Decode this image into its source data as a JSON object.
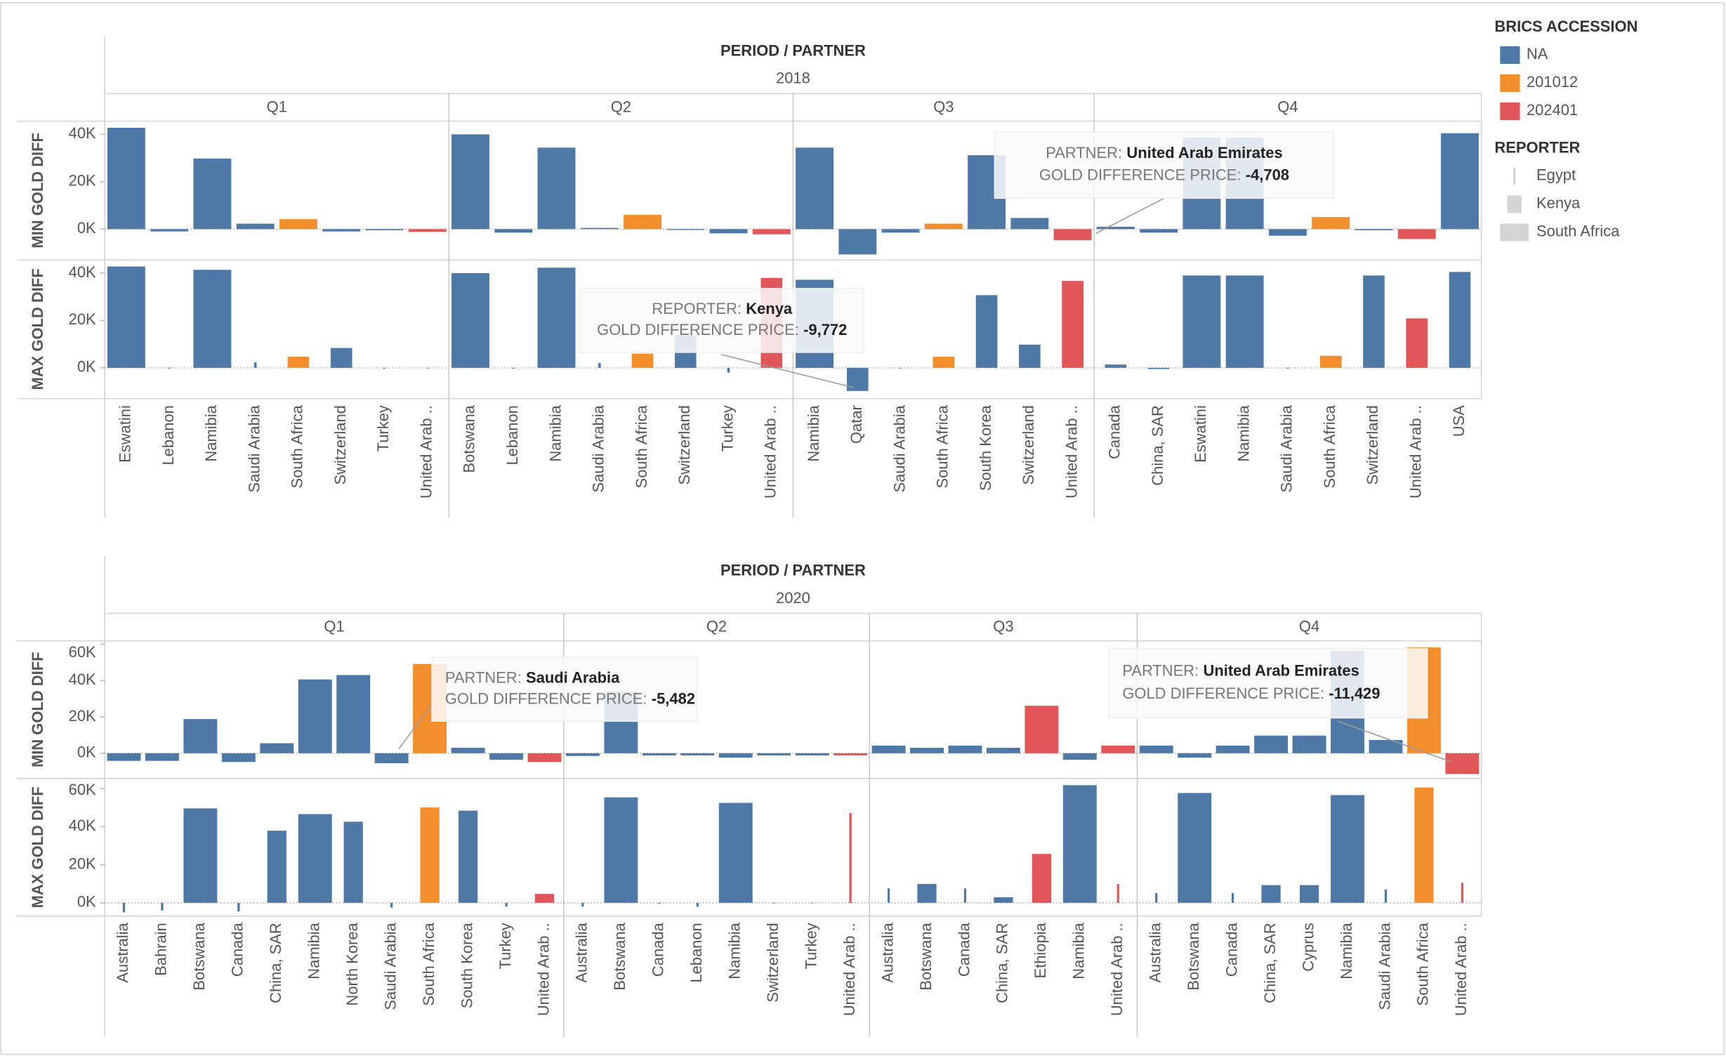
{
  "legend": {
    "accession_title": "BRICS ACCESSION",
    "accession": [
      {
        "name": "NA",
        "color": "#4e79a7"
      },
      {
        "name": "201012",
        "color": "#f28e2b"
      },
      {
        "name": "202401",
        "color": "#e15759"
      }
    ],
    "reporter_title": "REPORTER",
    "reporters": [
      "Egypt",
      "Kenya",
      "South Africa"
    ]
  },
  "chart_data": [
    {
      "type": "bar",
      "title": "PERIOD / PARTNER",
      "year": "2018",
      "panes": [
        {
          "label": "MIN GOLD DIFF",
          "ylim": [
            -13000,
            45600
          ],
          "yticks": [
            {
              "value": 0,
              "label": "0K"
            },
            {
              "value": 20000,
              "label": "20K"
            },
            {
              "value": 40000,
              "label": "40K"
            }
          ]
        },
        {
          "label": "MAX GOLD DIFF",
          "ylim": [
            -13000,
            45600
          ],
          "yticks": [
            {
              "value": 0,
              "label": "0K"
            },
            {
              "value": 20000,
              "label": "20K"
            },
            {
              "value": 40000,
              "label": "40K"
            }
          ]
        }
      ],
      "quarters": [
        {
          "name": "Q1",
          "categories": [
            "Eswatini",
            "Lebanon",
            "Namibia",
            "Saudi Arabia",
            "South Africa",
            "Switzerland",
            "Turkey",
            "United Arab .."
          ],
          "accession": [
            "NA",
            "NA",
            "NA",
            "NA",
            "201012",
            "NA",
            "NA",
            "202401"
          ],
          "series": [
            {
              "values": [
                42800,
                -1000,
                29800,
                2300,
                4200,
                -1000,
                -500,
                -1200
              ],
              "reporter": [
                "South Africa",
                "South Africa",
                "South Africa",
                "South Africa",
                "South Africa",
                "South Africa",
                "South Africa",
                "South Africa"
              ]
            },
            {
              "values": [
                42800,
                -300,
                41400,
                2300,
                4700,
                8400,
                -300,
                -200
              ],
              "reporter": [
                "South Africa",
                "Egypt",
                "South Africa",
                "Egypt",
                "Kenya",
                "Kenya",
                "Egypt",
                "Egypt"
              ]
            }
          ]
        },
        {
          "name": "Q2",
          "categories": [
            "Botswana",
            "Lebanon",
            "Namibia",
            "Saudi Arabia",
            "South Africa",
            "Switzerland",
            "Turkey",
            "United Arab .."
          ],
          "accession": [
            "NA",
            "NA",
            "NA",
            "NA",
            "201012",
            "NA",
            "NA",
            "202401"
          ],
          "series": [
            {
              "values": [
                40000,
                -1500,
                34400,
                500,
                6000,
                -400,
                -1800,
                -2200
              ],
              "reporter": [
                "South Africa",
                "South Africa",
                "South Africa",
                "South Africa",
                "South Africa",
                "South Africa",
                "South Africa",
                "South Africa"
              ]
            },
            {
              "values": [
                40000,
                -300,
                42300,
                2000,
                6000,
                14000,
                -2000,
                38000
              ],
              "reporter": [
                "South Africa",
                "Egypt",
                "South Africa",
                "Egypt",
                "Kenya",
                "Kenya",
                "Egypt",
                "Kenya"
              ]
            }
          ]
        },
        {
          "name": "Q3",
          "categories": [
            "Namibia",
            "Qatar",
            "Saudi Arabia",
            "South Africa",
            "South Korea",
            "Switzerland",
            "United Arab .."
          ],
          "accession": [
            "NA",
            "NA",
            "NA",
            "201012",
            "NA",
            "NA",
            "202401"
          ],
          "series": [
            {
              "values": [
                34400,
                -10700,
                -1500,
                2300,
                31200,
                4700,
                -4708
              ],
              "reporter": [
                "South Africa",
                "South Africa",
                "South Africa",
                "South Africa",
                "South Africa",
                "South Africa",
                "South Africa"
              ]
            },
            {
              "values": [
                37200,
                -9772,
                -300,
                4700,
                30700,
                9800,
                36700
              ],
              "reporter": [
                "South Africa",
                "Kenya",
                "Egypt",
                "Kenya",
                "Kenya",
                "Kenya",
                "Kenya"
              ]
            }
          ]
        },
        {
          "name": "Q4",
          "categories": [
            "Canada",
            "China, SAR",
            "Eswatini",
            "Namibia",
            "Saudi Arabia",
            "South Africa",
            "Switzerland",
            "United Arab ..",
            "USA"
          ],
          "accession": [
            "NA",
            "NA",
            "NA",
            "NA",
            "NA",
            "201012",
            "NA",
            "202401",
            "NA"
          ],
          "series": [
            {
              "values": [
                1000,
                -1500,
                38600,
                38600,
                -2800,
                5100,
                -500,
                -4200,
                40500
              ],
              "reporter": [
                "South Africa",
                "South Africa",
                "South Africa",
                "South Africa",
                "South Africa",
                "South Africa",
                "South Africa",
                "South Africa",
                "South Africa"
              ]
            },
            {
              "values": [
                1400,
                -500,
                39000,
                39000,
                -300,
                5100,
                39000,
                20900,
                40500
              ],
              "reporter": [
                "Kenya",
                "Kenya",
                "South Africa",
                "South Africa",
                "Egypt",
                "Kenya",
                "Kenya",
                "Kenya",
                "Kenya"
              ]
            }
          ]
        }
      ],
      "annotations": [
        {
          "field_label": "PARTNER:",
          "field_value": "United Arab Emirates",
          "price_label": "GOLD DIFFERENCE PRICE:",
          "price": "-4,708"
        },
        {
          "field_label": "REPORTER:",
          "field_value": "Kenya",
          "price_label": "GOLD DIFFERENCE PRICE:",
          "price": "-9,772"
        }
      ]
    },
    {
      "type": "bar",
      "title": "PERIOD / PARTNER",
      "year": "2020",
      "panes": [
        {
          "label": "MIN GOLD DIFF",
          "ylim": [
            -13900,
            61800
          ],
          "yticks": [
            {
              "value": 0,
              "label": "0K"
            },
            {
              "value": 20000,
              "label": "20K"
            },
            {
              "value": 40000,
              "label": "40K"
            },
            {
              "value": 60000,
              "label": "60K"
            }
          ]
        },
        {
          "label": "MAX GOLD DIFF",
          "ylim": [
            -7000,
            65300
          ],
          "yticks": [
            {
              "value": 0,
              "label": "0K"
            },
            {
              "value": 20000,
              "label": "20K"
            },
            {
              "value": 40000,
              "label": "40K"
            },
            {
              "value": 60000,
              "label": "60K"
            }
          ]
        }
      ],
      "quarters": [
        {
          "name": "Q1",
          "categories": [
            "Australia",
            "Bahrain",
            "Botswana",
            "Canada",
            "China, SAR",
            "Namibia",
            "North Korea",
            "Saudi Arabia",
            "South Africa",
            "South Korea",
            "Turkey",
            "United Arab .."
          ],
          "accession": [
            "NA",
            "NA",
            "NA",
            "NA",
            "NA",
            "NA",
            "NA",
            "NA",
            "201012",
            "NA",
            "NA",
            "202401"
          ],
          "series": [
            {
              "values": [
                -4200,
                -4200,
                18800,
                -4800,
                5500,
                40600,
                43000,
                -5482,
                49100,
                3000,
                -3600,
                -4800
              ],
              "reporter": [
                "South Africa",
                "South Africa",
                "South Africa",
                "South Africa",
                "South Africa",
                "South Africa",
                "South Africa",
                "South Africa",
                "South Africa",
                "South Africa",
                "South Africa",
                "South Africa"
              ]
            },
            {
              "values": [
                -5000,
                -4000,
                49600,
                -4500,
                37900,
                46600,
                42600,
                -2500,
                50100,
                48400,
                -2000,
                4700
              ],
              "reporter": [
                "Egypt",
                "Egypt",
                "South Africa",
                "Egypt",
                "Kenya",
                "South Africa",
                "Kenya",
                "Egypt",
                "Kenya",
                "Kenya",
                "Egypt",
                "Kenya"
              ]
            }
          ]
        },
        {
          "name": "Q2",
          "categories": [
            "Australia",
            "Botswana",
            "Canada",
            "Lebanon",
            "Namibia",
            "Switzerland",
            "Turkey",
            "United Arab .."
          ],
          "accession": [
            "NA",
            "NA",
            "NA",
            "NA",
            "NA",
            "NA",
            "NA",
            "202401"
          ],
          "series": [
            {
              "values": [
                -1500,
                34000,
                -1200,
                -1200,
                -2400,
                -1200,
                -1200,
                -1200
              ],
              "reporter": [
                "South Africa",
                "South Africa",
                "South Africa",
                "South Africa",
                "South Africa",
                "South Africa",
                "South Africa",
                "South Africa"
              ]
            },
            {
              "values": [
                -2000,
                55400,
                -500,
                -2000,
                52500,
                -300,
                -300,
                47200
              ],
              "reporter": [
                "Egypt",
                "South Africa",
                "Egypt",
                "Egypt",
                "South Africa",
                "Egypt",
                "Egypt",
                "Egypt"
              ]
            }
          ]
        },
        {
          "name": "Q3",
          "categories": [
            "Australia",
            "Botswana",
            "Canada",
            "China, SAR",
            "Ethiopia",
            "Namibia",
            "United Arab .."
          ],
          "accession": [
            "NA",
            "NA",
            "NA",
            "NA",
            "202401",
            "NA",
            "202401"
          ],
          "series": [
            {
              "values": [
                4200,
                3000,
                4200,
                3000,
                26100,
                -3600,
                4200
              ],
              "reporter": [
                "South Africa",
                "South Africa",
                "South Africa",
                "South Africa",
                "South Africa",
                "South Africa",
                "South Africa"
              ]
            },
            {
              "values": [
                7600,
                9900,
                7600,
                2900,
                25700,
                61800,
                9900
              ],
              "reporter": [
                "Egypt",
                "Kenya",
                "Egypt",
                "Kenya",
                "Kenya",
                "South Africa",
                "Egypt"
              ]
            }
          ]
        },
        {
          "name": "Q4",
          "categories": [
            "Australia",
            "Botswana",
            "Canada",
            "China, SAR",
            "Cyprus",
            "Namibia",
            "Saudi Arabia",
            "South Africa",
            "United Arab .."
          ],
          "accession": [
            "NA",
            "NA",
            "NA",
            "NA",
            "NA",
            "NA",
            "NA",
            "201012",
            "202401"
          ],
          "series": [
            {
              "values": [
                4200,
                -2400,
                4200,
                9700,
                9700,
                56400,
                7300,
                58200,
                -11429
              ],
              "reporter": [
                "South Africa",
                "South Africa",
                "South Africa",
                "South Africa",
                "South Africa",
                "South Africa",
                "South Africa",
                "South Africa",
                "South Africa"
              ]
            },
            {
              "values": [
                5200,
                57700,
                5200,
                9300,
                9300,
                56600,
                7000,
                60600,
                10500
              ],
              "reporter": [
                "Egypt",
                "South Africa",
                "Egypt",
                "Kenya",
                "Kenya",
                "South Africa",
                "Egypt",
                "Kenya",
                "Egypt"
              ]
            }
          ]
        }
      ],
      "annotations": [
        {
          "field_label": "PARTNER:",
          "field_value": "Saudi Arabia",
          "price_label": "GOLD DIFFERENCE PRICE:",
          "price": "-5,482"
        },
        {
          "field_label": "PARTNER:",
          "field_value": "United Arab Emirates",
          "price_label": "GOLD DIFFERENCE PRICE:",
          "price": "-11,429"
        }
      ]
    }
  ]
}
